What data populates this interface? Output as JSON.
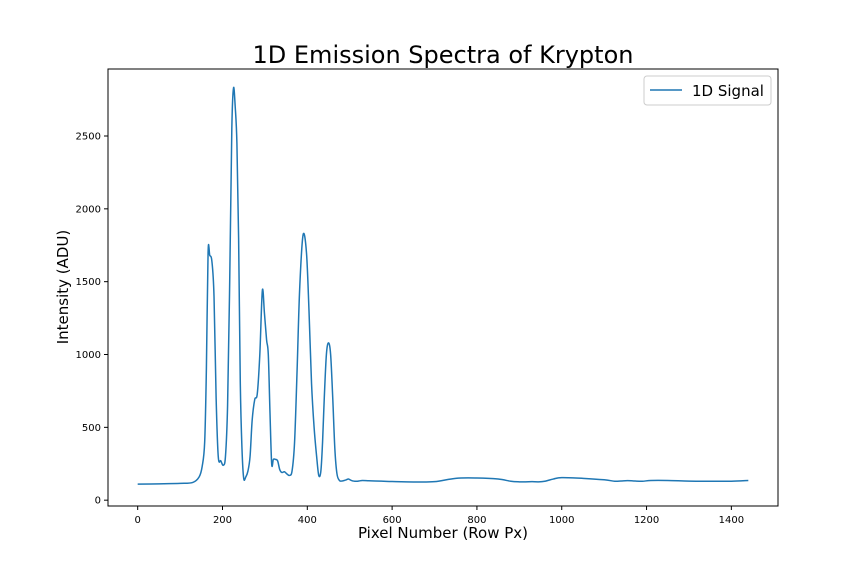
{
  "chart_data": {
    "type": "line",
    "title": "1D Emission Spectra of Krypton",
    "xlabel": "Pixel Number (Row Px)",
    "ylabel": "Intensity (ADU)",
    "xlim": [
      -70,
      1510
    ],
    "ylim": [
      -40,
      2960
    ],
    "xticks": [
      0,
      200,
      400,
      600,
      800,
      1000,
      1200,
      1400
    ],
    "yticks": [
      0,
      500,
      1000,
      1500,
      2000,
      2500
    ],
    "grid": false,
    "legend_position": "top-right",
    "color": "#1f77b4",
    "series": [
      {
        "name": "1D Signal",
        "x": [
          0,
          50,
          100,
          130,
          145,
          152,
          158,
          162,
          166,
          170,
          175,
          180,
          185,
          190,
          196,
          202,
          207,
          212,
          217,
          222,
          226,
          230,
          234,
          238,
          242,
          246,
          250,
          255,
          260,
          265,
          270,
          276,
          282,
          288,
          294,
          299,
          304,
          308,
          312,
          316,
          320,
          325,
          330,
          335,
          340,
          346,
          352,
          358,
          364,
          370,
          376,
          382,
          390,
          398,
          404,
          410,
          416,
          422,
          427,
          432,
          436,
          440,
          445,
          450,
          455,
          460,
          465,
          470,
          476,
          482,
          487,
          492,
          497,
          502,
          507,
          512,
          517,
          522,
          530,
          545,
          560,
          580,
          600,
          650,
          700,
          750,
          800,
          850,
          880,
          900,
          915,
          930,
          945,
          960,
          980,
          1000,
          1050,
          1100,
          1125,
          1140,
          1155,
          1170,
          1190,
          1210,
          1250,
          1300,
          1350,
          1400,
          1440
        ],
        "y": [
          110,
          112,
          115,
          122,
          160,
          230,
          400,
          900,
          1700,
          1680,
          1640,
          1400,
          700,
          300,
          270,
          240,
          300,
          650,
          1500,
          2550,
          2830,
          2700,
          2450,
          1800,
          800,
          350,
          150,
          160,
          200,
          300,
          550,
          690,
          730,
          1000,
          1440,
          1280,
          1100,
          1000,
          600,
          250,
          280,
          280,
          270,
          210,
          190,
          195,
          180,
          170,
          200,
          400,
          900,
          1450,
          1820,
          1700,
          1300,
          800,
          500,
          300,
          170,
          200,
          400,
          700,
          1000,
          1080,
          1000,
          700,
          350,
          180,
          135,
          132,
          135,
          140,
          145,
          138,
          132,
          130,
          130,
          132,
          135,
          133,
          132,
          130,
          128,
          125,
          127,
          150,
          152,
          145,
          130,
          126,
          126,
          127,
          126,
          130,
          145,
          155,
          150,
          140,
          130,
          132,
          134,
          132,
          130,
          135,
          135,
          131,
          130,
          130,
          135
        ]
      }
    ]
  }
}
